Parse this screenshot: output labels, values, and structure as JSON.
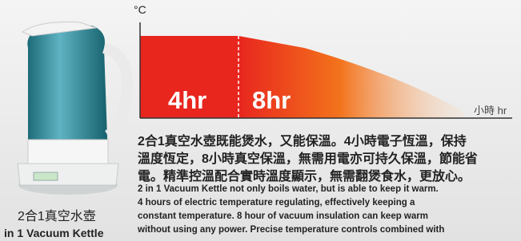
{
  "graph": {
    "unit": "°C",
    "labels": [
      "4hr",
      "8hr"
    ],
    "x_unit": "小時 hr"
  },
  "description": {
    "zh_lines": [
      "2合1真空水壺既能煲水，又能保溫。4小時電子恆溫，保持",
      "溫度恆定，8小時真空保溫，無需用電亦可持久保溫，節能省",
      "電。精準控溫配合實時溫度顯示，無需翻煲食水，更放心。"
    ],
    "en_lines": [
      "2 in 1 Vacuum Kettle not only boils water, but is able to keep it warm.",
      "4 hours of electric temperature regulating, effectively keeping a",
      "constant temperature. 8 hour of vacuum insulation can keep warm",
      "without using any power. Precise temperature controls combined with"
    ]
  },
  "caption": {
    "zh": "2合1真空水壺",
    "en": "in 1 Vacuum Kettle"
  }
}
